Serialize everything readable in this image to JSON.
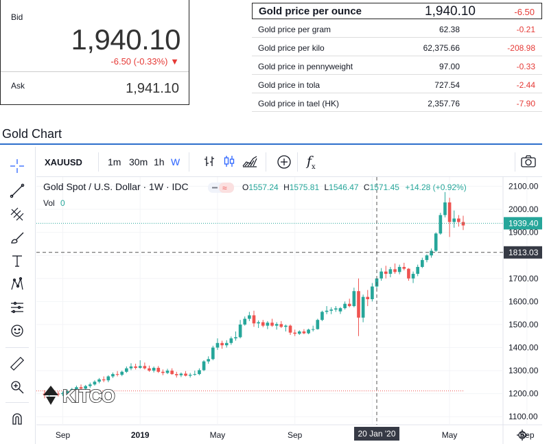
{
  "quote": {
    "bid_label": "Bid",
    "bid_value": "1,940.10",
    "bid_change": "-6.50 (-0.33%)",
    "bid_change_arrow": "▼",
    "ask_label": "Ask",
    "ask_value": "1,941.10"
  },
  "price_table": [
    {
      "label": "Gold price per ounce",
      "value": "1,940.10",
      "change": "-6.50"
    },
    {
      "label": "Gold price per gram",
      "value": "62.38",
      "change": "-0.21"
    },
    {
      "label": "Gold price per kilo",
      "value": "62,375.66",
      "change": "-208.98"
    },
    {
      "label": "Gold price in pennyweight",
      "value": "97.00",
      "change": "-0.33"
    },
    {
      "label": "Gold price in tola",
      "value": "727.54",
      "change": "-2.44"
    },
    {
      "label": "Gold price in tael (HK)",
      "value": "2,357.76",
      "change": "-7.90"
    }
  ],
  "section_title": "Gold Chart",
  "toolbar": {
    "symbol": "XAUUSD",
    "intervals": [
      "1m",
      "30m",
      "1h",
      "W"
    ],
    "active_interval": "W",
    "fx_label": "f"
  },
  "legend": {
    "title": "Gold Spot / U.S. Dollar · 1W · IDC",
    "o_label": "O",
    "o": "1557.24",
    "h_label": "H",
    "h": "1575.81",
    "l_label": "L",
    "l": "1546.47",
    "c_label": "C",
    "c": "1571.45",
    "change": "+14.28 (+0.92%)",
    "vol_label": "Vol",
    "vol_value": "0"
  },
  "logo_text": "KITCO",
  "colors": {
    "up": "#26a69a",
    "down": "#ef5350",
    "accent": "#2962ff",
    "price_tag": "#26a69a",
    "crosshair_tag": "#363a45"
  },
  "icons": [
    "crosshair-icon",
    "trend-line-icon",
    "fib-icon",
    "brush-icon",
    "text-icon",
    "pattern-icon",
    "measure-icon",
    "emoji-icon",
    "ruler-icon",
    "zoom-icon",
    "magnet-icon",
    "camera-icon",
    "settings-icon",
    "plus-circle-icon",
    "bars-icon",
    "candles-icon",
    "area-icon"
  ],
  "chart_data": {
    "type": "candlestick",
    "symbol": "XAUUSD",
    "interval": "1W",
    "y_ticks": [
      1100,
      1200,
      1300,
      1400,
      1500,
      1600,
      1700,
      1800,
      1900,
      2000,
      2100
    ],
    "y_tick_labels": [
      "1100.00",
      "1200.00",
      "1300.00",
      "1400.00",
      "1500.00",
      "1600.00",
      "1700.00",
      "1800.00",
      "1900.00",
      "2000.00",
      "2100.00"
    ],
    "ylim": [
      1065,
      2140
    ],
    "x_tick_labels": [
      "Sep",
      "2019",
      "May",
      "Sep",
      "Jan",
      "May",
      "Sep"
    ],
    "x_tick_index": [
      4,
      21,
      38,
      55,
      72,
      89,
      106
    ],
    "current_price": "1939.40",
    "current_price_value": 1939.4,
    "crosshair_price": "1813.03",
    "crosshair_price_value": 1813.03,
    "crosshair_date": "20 Jan '20",
    "crosshair_index": 73,
    "min_line_value": 1212,
    "candles": [
      [
        1200,
        1215,
        1180,
        1195
      ],
      [
        1195,
        1212,
        1188,
        1205
      ],
      [
        1205,
        1215,
        1195,
        1200
      ],
      [
        1200,
        1210,
        1188,
        1198
      ],
      [
        1198,
        1210,
        1190,
        1203
      ],
      [
        1203,
        1218,
        1198,
        1212
      ],
      [
        1212,
        1225,
        1205,
        1220
      ],
      [
        1220,
        1235,
        1210,
        1228
      ],
      [
        1228,
        1240,
        1218,
        1222
      ],
      [
        1222,
        1238,
        1215,
        1233
      ],
      [
        1233,
        1248,
        1225,
        1240
      ],
      [
        1240,
        1258,
        1235,
        1252
      ],
      [
        1252,
        1268,
        1245,
        1262
      ],
      [
        1262,
        1275,
        1250,
        1258
      ],
      [
        1258,
        1280,
        1250,
        1275
      ],
      [
        1275,
        1292,
        1268,
        1285
      ],
      [
        1285,
        1298,
        1275,
        1282
      ],
      [
        1282,
        1300,
        1276,
        1295
      ],
      [
        1295,
        1318,
        1290,
        1310
      ],
      [
        1310,
        1332,
        1302,
        1318
      ],
      [
        1318,
        1330,
        1305,
        1312
      ],
      [
        1312,
        1345,
        1308,
        1320
      ],
      [
        1320,
        1335,
        1305,
        1310
      ],
      [
        1310,
        1322,
        1295,
        1300
      ],
      [
        1300,
        1318,
        1292,
        1312
      ],
      [
        1312,
        1320,
        1290,
        1295
      ],
      [
        1295,
        1305,
        1280,
        1290
      ],
      [
        1290,
        1308,
        1285,
        1300
      ],
      [
        1300,
        1310,
        1282,
        1285
      ],
      [
        1285,
        1295,
        1270,
        1280
      ],
      [
        1280,
        1292,
        1272,
        1287
      ],
      [
        1287,
        1298,
        1275,
        1278
      ],
      [
        1278,
        1290,
        1270,
        1282
      ],
      [
        1282,
        1300,
        1278,
        1285
      ],
      [
        1285,
        1310,
        1280,
        1302
      ],
      [
        1302,
        1345,
        1298,
        1340
      ],
      [
        1340,
        1362,
        1330,
        1350
      ],
      [
        1350,
        1408,
        1345,
        1400
      ],
      [
        1400,
        1440,
        1390,
        1420
      ],
      [
        1420,
        1430,
        1395,
        1410
      ],
      [
        1410,
        1432,
        1400,
        1420
      ],
      [
        1420,
        1448,
        1412,
        1440
      ],
      [
        1440,
        1470,
        1430,
        1445
      ],
      [
        1445,
        1520,
        1440,
        1500
      ],
      [
        1500,
        1535,
        1495,
        1525
      ],
      [
        1525,
        1555,
        1515,
        1540
      ],
      [
        1540,
        1560,
        1490,
        1505
      ],
      [
        1505,
        1518,
        1485,
        1510
      ],
      [
        1510,
        1520,
        1488,
        1495
      ],
      [
        1495,
        1515,
        1480,
        1508
      ],
      [
        1508,
        1525,
        1490,
        1495
      ],
      [
        1495,
        1510,
        1478,
        1502
      ],
      [
        1502,
        1515,
        1485,
        1490
      ],
      [
        1490,
        1500,
        1470,
        1495
      ],
      [
        1495,
        1500,
        1455,
        1465
      ],
      [
        1465,
        1478,
        1450,
        1460
      ],
      [
        1460,
        1475,
        1455,
        1470
      ],
      [
        1470,
        1480,
        1458,
        1462
      ],
      [
        1462,
        1482,
        1458,
        1478
      ],
      [
        1478,
        1495,
        1470,
        1480
      ],
      [
        1480,
        1525,
        1478,
        1520
      ],
      [
        1520,
        1560,
        1515,
        1555
      ],
      [
        1555,
        1580,
        1545,
        1560
      ],
      [
        1560,
        1575,
        1545,
        1565
      ],
      [
        1565,
        1580,
        1555,
        1570
      ],
      [
        1557,
        1576,
        1546,
        1571
      ],
      [
        1571,
        1600,
        1565,
        1590
      ],
      [
        1590,
        1612,
        1575,
        1580
      ],
      [
        1580,
        1660,
        1575,
        1645
      ],
      [
        1645,
        1700,
        1450,
        1530
      ],
      [
        1530,
        1630,
        1510,
        1620
      ],
      [
        1620,
        1650,
        1580,
        1610
      ],
      [
        1610,
        1680,
        1600,
        1665
      ],
      [
        1665,
        1710,
        1650,
        1700
      ],
      [
        1700,
        1745,
        1690,
        1730
      ],
      [
        1730,
        1755,
        1700,
        1720
      ],
      [
        1720,
        1750,
        1705,
        1740
      ],
      [
        1740,
        1765,
        1720,
        1728
      ],
      [
        1728,
        1760,
        1718,
        1750
      ],
      [
        1750,
        1768,
        1735,
        1742
      ],
      [
        1742,
        1745,
        1690,
        1700
      ],
      [
        1700,
        1730,
        1680,
        1720
      ],
      [
        1720,
        1760,
        1710,
        1750
      ],
      [
        1750,
        1790,
        1745,
        1780
      ],
      [
        1780,
        1805,
        1770,
        1800
      ],
      [
        1800,
        1830,
        1790,
        1820
      ],
      [
        1820,
        1900,
        1815,
        1895
      ],
      [
        1895,
        1985,
        1890,
        1975
      ],
      [
        1975,
        2075,
        1965,
        2030
      ],
      [
        2030,
        2050,
        1880,
        1945
      ],
      [
        1945,
        1995,
        1920,
        1960
      ],
      [
        1960,
        1975,
        1925,
        1945
      ],
      [
        1945,
        1972,
        1910,
        1930
      ]
    ]
  }
}
